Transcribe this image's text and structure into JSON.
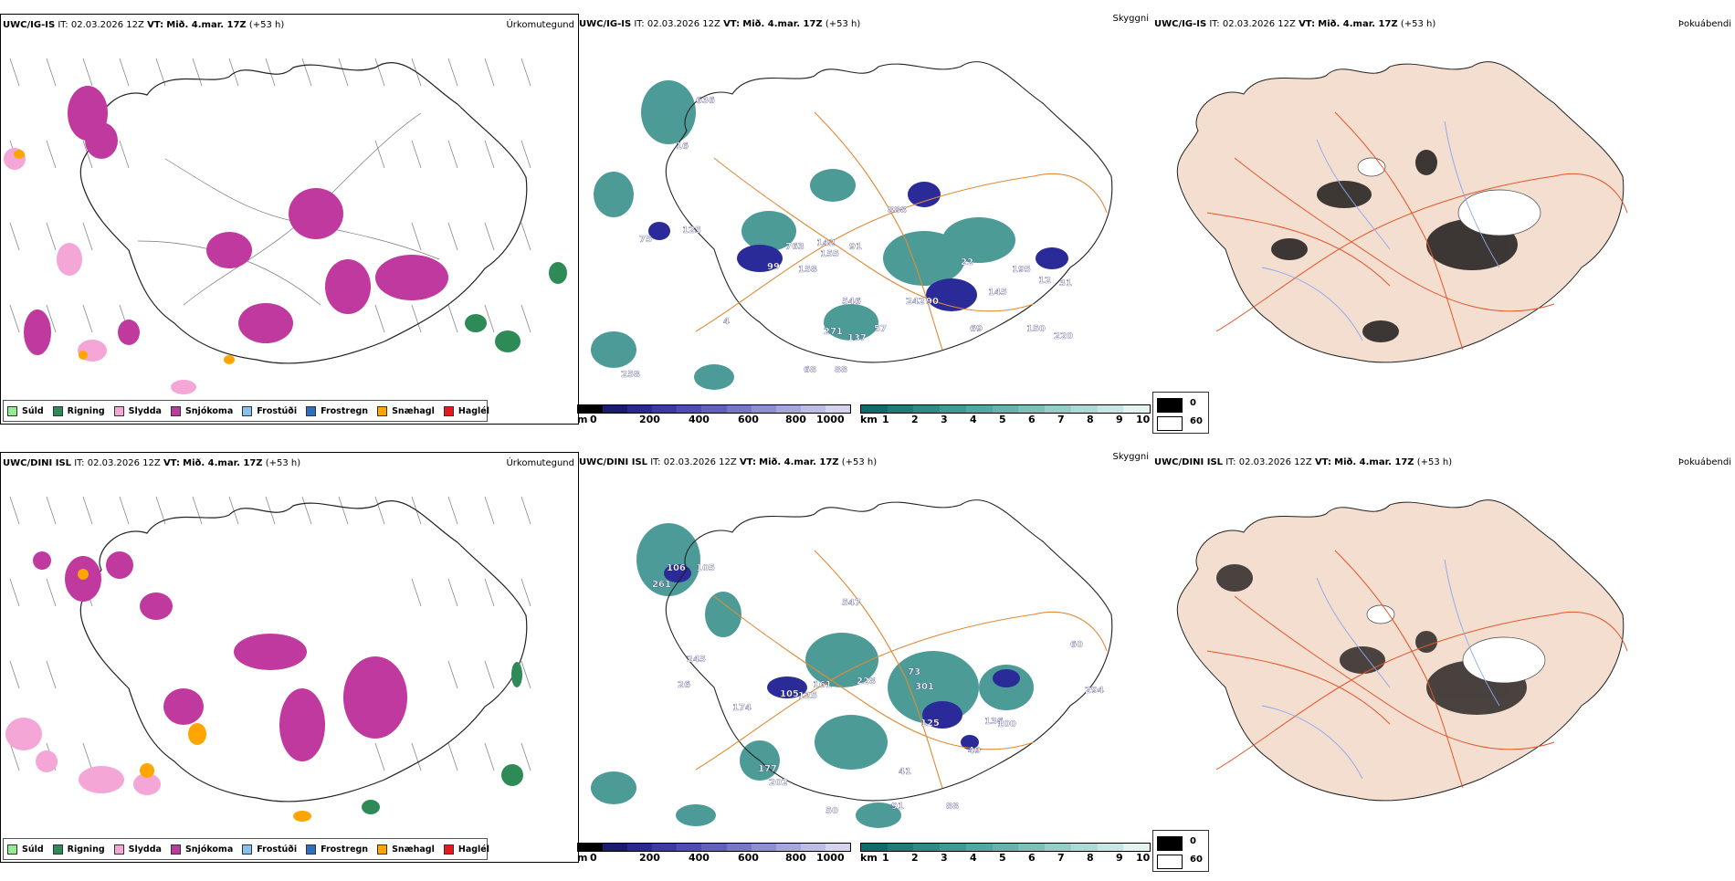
{
  "panels": {
    "top": {
      "precip": {
        "model": "UWC/IG-IS",
        "it_label": "IT:",
        "it": "02.03.2026 12Z",
        "vt_label": "VT:",
        "vt": "Mið. 4.mar. 17Z",
        "lead": "(+53 h)",
        "title": "Úrkomutegund"
      },
      "cloud": {
        "model": "UWC/IG-IS",
        "it_label": "IT:",
        "it": "02.03.2026 12Z",
        "vt_label": "VT:",
        "vt": "Mið. 4.mar. 17Z",
        "lead": "(+53 h)",
        "title": "Skyggni"
      },
      "fog": {
        "model": "UWC/IG-IS",
        "it_label": "IT:",
        "it": "02.03.2026 12Z",
        "vt_label": "VT:",
        "vt": "Mið. 4.mar. 17Z",
        "lead": "(+53 h)",
        "title": "Þokuábendi"
      },
      "cloud_values": [
        "636",
        "16",
        "125",
        "75",
        "763",
        "142",
        "155",
        "91",
        "99",
        "158",
        "888",
        "242",
        "90",
        "145",
        "195",
        "546",
        "271",
        "137",
        "57",
        "69",
        "150",
        "220",
        "258",
        "68",
        "88",
        "12",
        "31",
        "22",
        "4"
      ]
    },
    "bottom": {
      "precip": {
        "model": "UWC/DINI ISL",
        "it_label": "IT:",
        "it": "02.03.2026 12Z",
        "vt_label": "VT:",
        "vt": "Mið. 4.mar. 17Z",
        "lead": "(+53 h)",
        "title": "Úrkomutegund"
      },
      "cloud": {
        "model": "UWC/DINI ISL",
        "it_label": "IT:",
        "it": "02.03.2026 12Z",
        "vt_label": "VT:",
        "vt": "Mið. 4.mar. 17Z",
        "lead": "(+53 h)",
        "title": "Skyggni"
      },
      "fog": {
        "model": "UWC/DINI ISL",
        "it_label": "IT:",
        "it": "02.03.2026 12Z",
        "vt_label": "VT:",
        "vt": "Mið. 4.mar. 17Z",
        "lead": "(+53 h)",
        "title": "Þokuábendi"
      },
      "cloud_values": [
        "106",
        "261",
        "105",
        "245",
        "547",
        "161",
        "105",
        "125",
        "174",
        "228",
        "301",
        "73",
        "125",
        "136",
        "100",
        "177",
        "202",
        "49",
        "41",
        "91",
        "88",
        "50",
        "60",
        "294",
        "26"
      ]
    }
  },
  "precip_legend": [
    {
      "label": "Súld",
      "color": "#90ee90"
    },
    {
      "label": "Rigning",
      "color": "#2e8b57"
    },
    {
      "label": "Slydda",
      "color": "#f4a6d7"
    },
    {
      "label": "Snjókoma",
      "color": "#c0399f"
    },
    {
      "label": "Frostúði",
      "color": "#87c1f0"
    },
    {
      "label": "Frostregn",
      "color": "#2f6fbf"
    },
    {
      "label": "Snæhagl",
      "color": "#ffa500"
    },
    {
      "label": "Haglél",
      "color": "#e41a1c"
    }
  ],
  "cloudbase_bar": {
    "unit": "m",
    "ticks": [
      "0",
      "200",
      "400",
      "600",
      "800",
      "1000"
    ],
    "colors": [
      "#000000",
      "#1a1a6e",
      "#28288f",
      "#3a3aa6",
      "#4d4db3",
      "#6060be",
      "#7777c8",
      "#8e8ed2",
      "#a6a6dc",
      "#bdbde6",
      "#d4d4ef"
    ]
  },
  "visibility_bar": {
    "unit": "km",
    "ticks": [
      "1",
      "2",
      "3",
      "4",
      "5",
      "6",
      "7",
      "8",
      "9",
      "10"
    ],
    "colors": [
      "#0f6b6b",
      "#1f7a78",
      "#2e8a86",
      "#3f9a94",
      "#51a7a1",
      "#66b3ad",
      "#7dc0ba",
      "#95cdc7",
      "#aedad5",
      "#c8e7e3",
      "#e4f3f1"
    ]
  },
  "fog_key": [
    {
      "label": "0",
      "color": "#000000"
    },
    {
      "label": "60",
      "color": "#ffffff"
    }
  ],
  "colors": {
    "land_fog": "#f3ded0",
    "roads": "#e2562b",
    "rivers": "#8aa8f0",
    "cloud_roads": "#e08a35"
  }
}
